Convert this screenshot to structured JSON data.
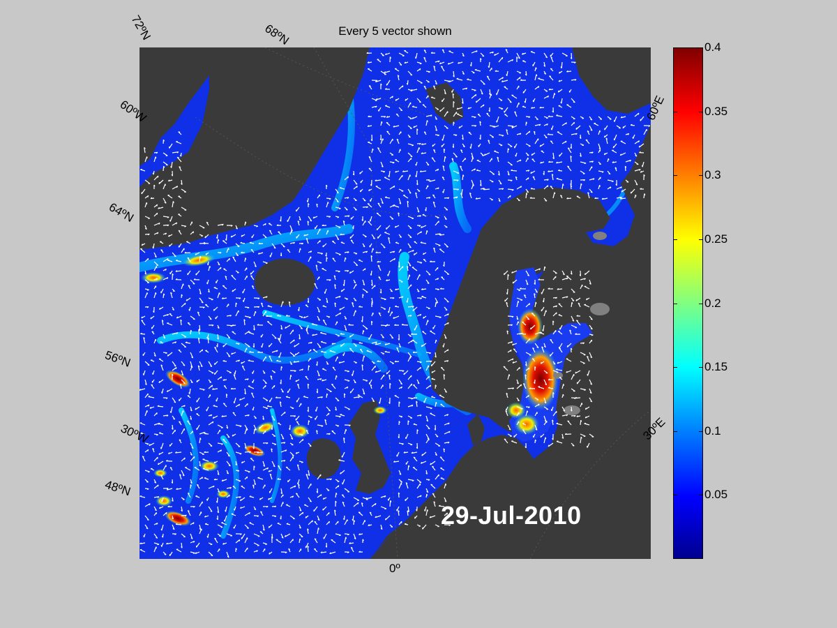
{
  "title": "Every 5 vector shown",
  "date_stamp": "29-Jul-2010",
  "map": {
    "background_colors": {
      "ocean_low": "#0f2ee0",
      "ocean_mid": "#00b4ff",
      "ocean_high": "#e03000",
      "land": "#3a3a3a",
      "lake": "#808080",
      "vectors": "#ffffff"
    },
    "lat_labels": [
      "72ºN",
      "68ºN",
      "64ºN",
      "56ºN",
      "48ºN"
    ],
    "lon_labels": [
      "60ºW",
      "30ºW",
      "0º",
      "30ºE",
      "60ºE"
    ]
  },
  "colorbar": {
    "min": 0,
    "max": 0.4,
    "ticks": [
      "0.4",
      "0.35",
      "0.3",
      "0.25",
      "0.2",
      "0.15",
      "0.1",
      "0.05"
    ],
    "colormap": "jet"
  }
}
